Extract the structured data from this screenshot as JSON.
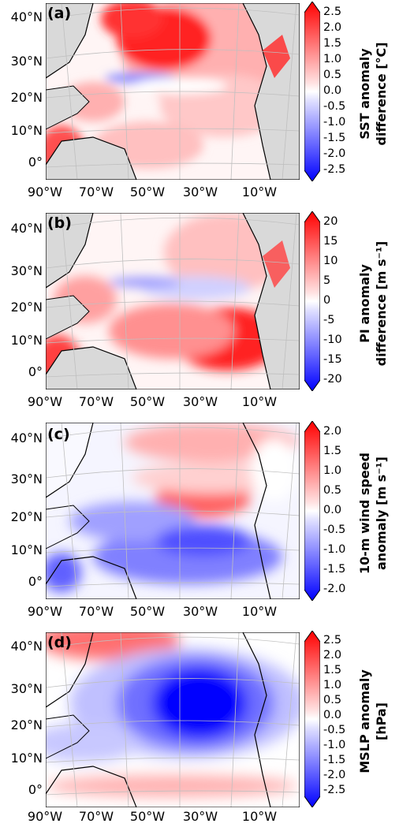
{
  "panels": [
    {
      "tag": "(a)",
      "cb_title_1": "SST anomaly",
      "cb_title_2": "difference [°C]",
      "ticks": [
        "2.5",
        "2.0",
        "1.5",
        "1.0",
        "0.5",
        "0.0",
        "-0.5",
        "-1.0",
        "-1.5",
        "-2.0",
        "-2.5"
      ]
    },
    {
      "tag": "(b)",
      "cb_title_1": "PI anomaly",
      "cb_title_2": "difference [m s⁻¹]",
      "ticks": [
        "20",
        "15",
        "10",
        "5",
        "0",
        "-5",
        "-10",
        "-15",
        "-20"
      ]
    },
    {
      "tag": "(c)",
      "cb_title_1": "10-m wind speed",
      "cb_title_2": "anomaly [m s⁻¹]",
      "ticks": [
        "2.0",
        "1.5",
        "1.0",
        "0.5",
        "0.0",
        "-0.5",
        "-1.0",
        "-1.5",
        "-2.0"
      ]
    },
    {
      "tag": "(d)",
      "cb_title_1": "MSLP anomaly",
      "cb_title_2": "[hPa]",
      "ticks": [
        "2.5",
        "2.0",
        "1.5",
        "1.0",
        "0.5",
        "0.0",
        "-0.5",
        "-1.0",
        "-1.5",
        "-2.0",
        "-2.5"
      ]
    }
  ],
  "lat_labels": [
    "40°N",
    "30°N",
    "20°N",
    "10°N",
    "0°"
  ],
  "lon_labels": [
    "90°W",
    "70°W",
    "50°W",
    "30°W",
    "10°W"
  ],
  "colors": {
    "land": "#d9d9d9",
    "red": "#ff0000",
    "blue": "#0000ff",
    "white": "#ffffff"
  }
}
